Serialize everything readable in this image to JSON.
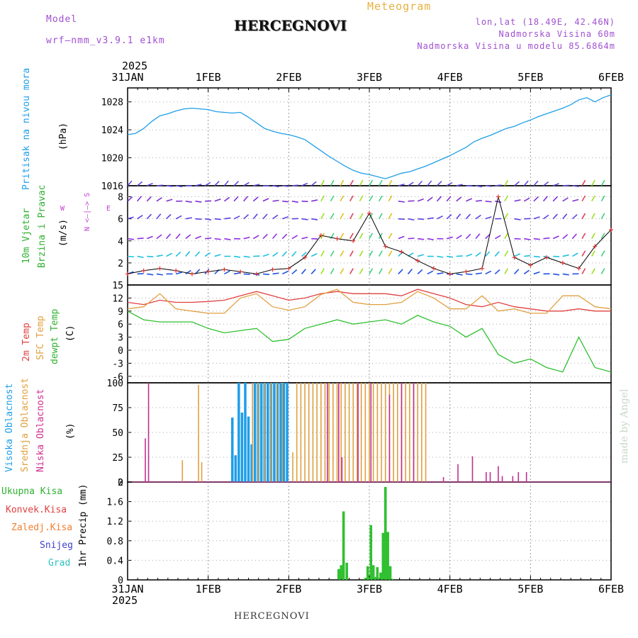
{
  "header": {
    "model_label": "Model",
    "model_name": "wrf–nmm_v3.9.1 e1km",
    "title": "HERCEGNOVI",
    "meteogram": "Meteogram",
    "lonlat": "lon,lat (18.49E, 42.46N)",
    "altitude": "Nadmorska Visina 60m",
    "model_altitude": "Nadmorska Visina u modelu 85.6864m",
    "year_top": "2025",
    "year_bottom": "2025",
    "footer": "HERCEGNOVI",
    "credit": "made by Angel"
  },
  "days": [
    "31JAN",
    "1FEB",
    "2FEB",
    "3FEB",
    "4FEB",
    "5FEB",
    "6FEB"
  ],
  "panels": {
    "pressure": {
      "label": "Pritisak na nivou mora",
      "unit": "(hPa)",
      "color": "#1e9ee8"
    },
    "wind": {
      "label1": "10m Vjetar",
      "label2": "Brzina i Pravac",
      "unit": "(m/s)",
      "compass_ns": "N <–|–> S",
      "compass_w": "W",
      "compass_e": "E"
    },
    "temp": {
      "label1": "2m Temp",
      "label2": "SFC Temp",
      "label3": "dewpt Temp",
      "unit": "(C)"
    },
    "cloud": {
      "label1": "Visoka Oblacnost",
      "label2": "Srednja Oblacnost",
      "label3": "Niska Oblacnost",
      "unit": "(%)"
    },
    "precip": {
      "unit": "1hr Precip (mm)",
      "legend": [
        {
          "label": "Ukupna Kisa",
          "color": "#30b030"
        },
        {
          "label": "Konvek.Kisa",
          "color": "#e04040"
        },
        {
          "label": "Zaledj.Kisa",
          "color": "#f08030"
        },
        {
          "label": "Snijeg",
          "color": "#4040d0"
        },
        {
          "label": "Grad",
          "color": "#30c0c0"
        }
      ]
    }
  },
  "chart_data": [
    {
      "type": "line",
      "title": "Pritisak na nivou mora",
      "ylabel": "(hPa)",
      "ylim": [
        1016,
        1030
      ],
      "yticks": [
        1016,
        1020,
        1024,
        1028
      ],
      "x_days": [
        0,
        0.1,
        0.2,
        0.3,
        0.4,
        0.5,
        0.6,
        0.7,
        0.8,
        0.9,
        1.0,
        1.1,
        1.2,
        1.3,
        1.4,
        1.5,
        1.6,
        1.7,
        1.8,
        1.9,
        2.0,
        2.1,
        2.2,
        2.3,
        2.4,
        2.5,
        2.6,
        2.7,
        2.8,
        2.9,
        3.0,
        3.1,
        3.2,
        3.3,
        3.4,
        3.5,
        3.6,
        3.7,
        3.8,
        3.9,
        4.0,
        4.1,
        4.2,
        4.3,
        4.4,
        4.5,
        4.6,
        4.7,
        4.8,
        4.9,
        5.0,
        5.1,
        5.2,
        5.3,
        5.4,
        5.5,
        5.6,
        5.7,
        5.8,
        5.9,
        6.0
      ],
      "series": [
        {
          "values": [
            1023.3,
            1023.5,
            1024.2,
            1025.2,
            1026.0,
            1026.3,
            1026.7,
            1027.0,
            1027.1,
            1027.0,
            1026.9,
            1026.6,
            1026.5,
            1026.4,
            1026.5,
            1025.8,
            1025.0,
            1024.2,
            1023.8,
            1023.5,
            1023.3,
            1023.0,
            1022.6,
            1021.8,
            1021.0,
            1020.2,
            1019.5,
            1018.8,
            1018.2,
            1017.8,
            1017.6,
            1017.3,
            1017.0,
            1017.4,
            1017.8,
            1018.0,
            1018.4,
            1018.8,
            1019.3,
            1019.8,
            1020.3,
            1020.9,
            1021.5,
            1022.3,
            1022.8,
            1023.2,
            1023.7,
            1024.2,
            1024.5,
            1025.0,
            1025.4,
            1025.9,
            1026.3,
            1026.7,
            1027.1,
            1027.6,
            1028.3,
            1028.6,
            1028.0,
            1028.6,
            1029.0
          ]
        }
      ]
    },
    {
      "type": "line",
      "title": "10m Vjetar Brzina i Pravac",
      "ylabel": "(m/s)",
      "ylim": [
        0,
        9
      ],
      "yticks": [
        2,
        4,
        6,
        8
      ],
      "barb_rows": [
        1,
        2.6,
        4.2,
        6.0,
        7.6,
        9.0
      ],
      "x_days": [
        0,
        0.2,
        0.4,
        0.6,
        0.8,
        1.0,
        1.2,
        1.4,
        1.6,
        1.8,
        2.0,
        2.2,
        2.4,
        2.6,
        2.8,
        3.0,
        3.2,
        3.4,
        3.6,
        3.8,
        4.0,
        4.2,
        4.4,
        4.6,
        4.8,
        5.0,
        5.2,
        5.4,
        5.6,
        5.8,
        6.0
      ],
      "series": [
        {
          "values": [
            1.0,
            1.3,
            1.5,
            1.3,
            1.0,
            1.2,
            1.4,
            1.2,
            1.0,
            1.4,
            1.5,
            2.5,
            4.5,
            4.2,
            4.0,
            6.5,
            3.5,
            3.0,
            2.2,
            1.5,
            1.0,
            1.2,
            1.5,
            8.0,
            2.5,
            1.8,
            2.5,
            2.0,
            1.5,
            3.5,
            5.0
          ]
        }
      ]
    },
    {
      "type": "line",
      "title": "2m Temp / SFC Temp / dewpt Temp",
      "ylabel": "(C)",
      "ylim": [
        -7.5,
        15
      ],
      "yticks": [
        -6,
        -3,
        0,
        3,
        6,
        9,
        12,
        15
      ],
      "x_days": [
        0,
        0.2,
        0.4,
        0.6,
        0.8,
        1.0,
        1.2,
        1.4,
        1.6,
        1.8,
        2.0,
        2.2,
        2.4,
        2.6,
        2.8,
        3.0,
        3.2,
        3.4,
        3.6,
        3.8,
        4.0,
        4.2,
        4.4,
        4.6,
        4.8,
        5.0,
        5.2,
        5.4,
        5.6,
        5.8,
        6.0
      ],
      "series": [
        {
          "name": "2m Temp",
          "color": "#e04040",
          "values": [
            11,
            10.5,
            11.5,
            11,
            11,
            11.2,
            11.5,
            12.5,
            13.5,
            12.5,
            11.5,
            12,
            13,
            13.5,
            13,
            13,
            13,
            12.5,
            14,
            13,
            12,
            10.5,
            10,
            11,
            10,
            9.5,
            9,
            9,
            9.5,
            9,
            9
          ]
        },
        {
          "name": "SFC Temp",
          "color": "#e0a040",
          "values": [
            9.5,
            10,
            13,
            9.5,
            9,
            8.5,
            8.5,
            12,
            13,
            10,
            9.2,
            10,
            12.8,
            14,
            11,
            10.5,
            10.5,
            11,
            13.5,
            12,
            9.5,
            9.5,
            12.5,
            9,
            9.5,
            8.5,
            8.5,
            12.5,
            12.5,
            10,
            9.5
          ]
        },
        {
          "name": "dewpt Temp",
          "color": "#30c030",
          "values": [
            9,
            7,
            6.5,
            6.5,
            6.5,
            5,
            4,
            4.5,
            5,
            2,
            2.5,
            5,
            6,
            7,
            6,
            6.5,
            7,
            6,
            8,
            6.5,
            5.5,
            3,
            5,
            -1,
            -3,
            -2,
            -4,
            -5,
            3,
            -4,
            -5
          ]
        }
      ]
    },
    {
      "type": "bar",
      "title": "Oblacnost",
      "ylabel": "(%)",
      "ylim": [
        0,
        100
      ],
      "yticks": [
        0,
        25,
        50,
        75,
        100
      ],
      "series": [
        {
          "name": "Visoka Oblacnost",
          "color": "#1e9ee8",
          "x_days": [
            1.3,
            1.34,
            1.38,
            1.42,
            1.46,
            1.5,
            1.54,
            1.58,
            1.62,
            1.66,
            1.7,
            1.74,
            1.78,
            1.82,
            1.86,
            1.9,
            1.94,
            1.98
          ],
          "values": [
            65,
            27,
            100,
            70,
            100,
            66,
            38,
            100,
            100,
            100,
            100,
            100,
            100,
            100,
            100,
            100,
            100,
            100
          ]
        },
        {
          "name": "Srednja Oblacnost",
          "color": "#e0a040",
          "x_days": [
            0.68,
            0.88,
            0.92,
            1.55,
            1.62,
            1.7,
            1.78,
            1.85,
            1.92,
            2.05,
            2.1,
            2.15,
            2.2,
            2.25,
            2.3,
            2.35,
            2.4,
            2.45,
            2.5,
            2.55,
            2.6,
            2.65,
            2.7,
            2.75,
            2.8,
            2.85,
            2.9,
            2.95,
            3.0,
            3.05,
            3.1,
            3.15,
            3.2,
            3.25,
            3.3,
            3.35,
            3.4,
            3.45,
            3.5,
            3.55,
            3.6,
            3.65,
            3.7
          ],
          "values": [
            22,
            98,
            20,
            100,
            100,
            100,
            100,
            100,
            100,
            30,
            100,
            100,
            100,
            100,
            100,
            100,
            100,
            100,
            100,
            100,
            100,
            100,
            100,
            100,
            100,
            100,
            100,
            100,
            100,
            100,
            100,
            100,
            100,
            100,
            100,
            100,
            100,
            100,
            100,
            100,
            100,
            100,
            100
          ]
        },
        {
          "name": "Niska Oblacnost",
          "color": "#c03090",
          "x_days": [
            0.22,
            0.26,
            2.48,
            2.62,
            2.66,
            2.86,
            3.02,
            3.25,
            3.4,
            3.55,
            3.92,
            4.1,
            4.28,
            4.45,
            4.5,
            4.6,
            4.65,
            4.78,
            4.85,
            4.95
          ],
          "values": [
            44,
            100,
            100,
            100,
            25,
            100,
            100,
            88,
            100,
            100,
            5,
            18,
            26,
            10,
            10,
            16,
            6,
            6,
            10,
            10
          ]
        }
      ]
    },
    {
      "type": "bar",
      "title": "1hr Precip",
      "ylabel": "1hr Precip (mm)",
      "ylim": [
        0,
        2
      ],
      "yticks": [
        0,
        0.4,
        0.8,
        1.2,
        1.6,
        2
      ],
      "series": [
        {
          "name": "Ukupna Kisa",
          "color": "#30c030",
          "x_days": [
            2.62,
            2.65,
            2.68,
            2.72,
            2.95,
            2.98,
            3.0,
            3.02,
            3.05,
            3.08,
            3.1,
            3.14,
            3.17,
            3.2,
            3.23,
            3.26,
            3.29
          ],
          "values": [
            0.22,
            0.3,
            1.4,
            0.35,
            0.04,
            0.28,
            0.05,
            1.12,
            0.3,
            0.06,
            0.26,
            0.15,
            0.96,
            1.9,
            0.98,
            0.28,
            0.02
          ]
        }
      ]
    }
  ]
}
